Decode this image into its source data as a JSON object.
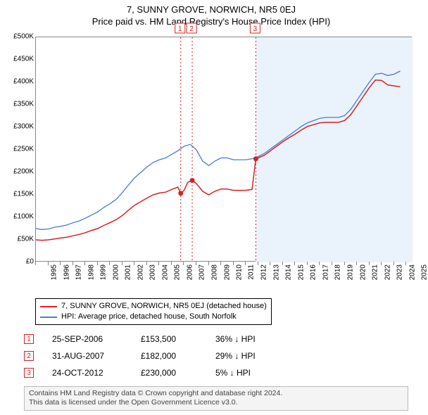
{
  "title_line1": "7, SUNNY GROVE, NORWICH, NR5 0EJ",
  "title_line2": "Price paid vs. HM Land Registry's House Price Index (HPI)",
  "chart": {
    "type": "line",
    "background_color": "#ffffff",
    "future_shade_color": "#eaf2fb",
    "border_color": "#888888",
    "yaxis": {
      "min": 0,
      "max": 500000,
      "step": 50000,
      "labels": [
        "£0",
        "£50K",
        "£100K",
        "£150K",
        "£200K",
        "£250K",
        "£300K",
        "£350K",
        "£400K",
        "£450K",
        "£500K"
      ],
      "label_color": "#000",
      "fontsize": 10
    },
    "xaxis": {
      "min": 1995,
      "max": 2025.5,
      "ticks_at": [
        1995,
        1996,
        1997,
        1998,
        1999,
        2000,
        2001,
        2002,
        2003,
        2004,
        2005,
        2006,
        2007,
        2008,
        2009,
        2010,
        2011,
        2012,
        2013,
        2014,
        2015,
        2016,
        2017,
        2018,
        2019,
        2020,
        2021,
        2022,
        2023,
        2024,
        2025
      ],
      "labels": [
        "1995",
        "1996",
        "1997",
        "1998",
        "1999",
        "2000",
        "2001",
        "2002",
        "2003",
        "2004",
        "2005",
        "2006",
        "2007",
        "2008",
        "2009",
        "2010",
        "2011",
        "2012",
        "2013",
        "2014",
        "2015",
        "2016",
        "2017",
        "2018",
        "2019",
        "2020",
        "2021",
        "2022",
        "2023",
        "2024",
        "2025"
      ],
      "label_color": "#000",
      "fontsize": 10
    },
    "series": [
      {
        "name": "hpi_south_norfolk_detached",
        "label": "HPI: Average price, detached house, South Norfolk",
        "color": "#4a7bd1",
        "line_width": 1.3,
        "data": [
          [
            1995.0,
            75000
          ],
          [
            1995.5,
            73000
          ],
          [
            1996.0,
            74000
          ],
          [
            1996.5,
            78000
          ],
          [
            1997.0,
            80000
          ],
          [
            1997.5,
            83000
          ],
          [
            1998.0,
            88000
          ],
          [
            1998.5,
            92000
          ],
          [
            1999.0,
            98000
          ],
          [
            1999.5,
            105000
          ],
          [
            2000.0,
            112000
          ],
          [
            2000.5,
            122000
          ],
          [
            2001.0,
            130000
          ],
          [
            2001.5,
            140000
          ],
          [
            2002.0,
            155000
          ],
          [
            2002.5,
            172000
          ],
          [
            2003.0,
            188000
          ],
          [
            2003.5,
            200000
          ],
          [
            2004.0,
            212000
          ],
          [
            2004.5,
            222000
          ],
          [
            2005.0,
            228000
          ],
          [
            2005.5,
            232000
          ],
          [
            2006.0,
            240000
          ],
          [
            2006.5,
            248000
          ],
          [
            2007.0,
            258000
          ],
          [
            2007.5,
            262000
          ],
          [
            2008.0,
            250000
          ],
          [
            2008.5,
            225000
          ],
          [
            2009.0,
            215000
          ],
          [
            2009.5,
            225000
          ],
          [
            2010.0,
            232000
          ],
          [
            2010.5,
            232000
          ],
          [
            2011.0,
            228000
          ],
          [
            2011.5,
            228000
          ],
          [
            2012.0,
            228000
          ],
          [
            2012.5,
            230000
          ],
          [
            2013.0,
            235000
          ],
          [
            2013.5,
            242000
          ],
          [
            2014.0,
            252000
          ],
          [
            2014.5,
            262000
          ],
          [
            2015.0,
            272000
          ],
          [
            2015.5,
            282000
          ],
          [
            2016.0,
            292000
          ],
          [
            2016.5,
            302000
          ],
          [
            2017.0,
            310000
          ],
          [
            2017.5,
            315000
          ],
          [
            2018.0,
            320000
          ],
          [
            2018.5,
            322000
          ],
          [
            2019.0,
            322000
          ],
          [
            2019.5,
            322000
          ],
          [
            2020.0,
            326000
          ],
          [
            2020.5,
            340000
          ],
          [
            2021.0,
            360000
          ],
          [
            2021.5,
            380000
          ],
          [
            2022.0,
            400000
          ],
          [
            2022.5,
            418000
          ],
          [
            2023.0,
            420000
          ],
          [
            2023.5,
            415000
          ],
          [
            2024.0,
            418000
          ],
          [
            2024.5,
            425000
          ]
        ]
      },
      {
        "name": "property_price_line",
        "label": "7, SUNNY GROVE, NORWICH, NR5 0EJ (detached house)",
        "color": "#d62222",
        "line_width": 1.5,
        "data": [
          [
            1995.0,
            50000
          ],
          [
            1995.5,
            49000
          ],
          [
            1996.0,
            50000
          ],
          [
            1996.5,
            52000
          ],
          [
            1997.0,
            54000
          ],
          [
            1997.5,
            56000
          ],
          [
            1998.0,
            59000
          ],
          [
            1998.5,
            62000
          ],
          [
            1999.0,
            66000
          ],
          [
            1999.5,
            71000
          ],
          [
            2000.0,
            75000
          ],
          [
            2000.5,
            82000
          ],
          [
            2001.0,
            88000
          ],
          [
            2001.5,
            95000
          ],
          [
            2002.0,
            104000
          ],
          [
            2002.5,
            116000
          ],
          [
            2003.0,
            127000
          ],
          [
            2003.5,
            135000
          ],
          [
            2004.0,
            143000
          ],
          [
            2004.5,
            150000
          ],
          [
            2005.0,
            154000
          ],
          [
            2005.5,
            156000
          ],
          [
            2006.0,
            162000
          ],
          [
            2006.5,
            167000
          ],
          [
            2006.73,
            153500
          ],
          [
            2007.0,
            160000
          ],
          [
            2007.3,
            178000
          ],
          [
            2007.66,
            182000
          ],
          [
            2008.0,
            175000
          ],
          [
            2008.5,
            158000
          ],
          [
            2009.0,
            150000
          ],
          [
            2009.5,
            158000
          ],
          [
            2010.0,
            163000
          ],
          [
            2010.5,
            163000
          ],
          [
            2011.0,
            160000
          ],
          [
            2011.5,
            160000
          ],
          [
            2012.0,
            160000
          ],
          [
            2012.5,
            162000
          ],
          [
            2012.81,
            230000
          ],
          [
            2013.0,
            232000
          ],
          [
            2013.5,
            238000
          ],
          [
            2014.0,
            248000
          ],
          [
            2014.5,
            258000
          ],
          [
            2015.0,
            268000
          ],
          [
            2015.5,
            277000
          ],
          [
            2016.0,
            285000
          ],
          [
            2016.5,
            294000
          ],
          [
            2017.0,
            302000
          ],
          [
            2017.5,
            306000
          ],
          [
            2018.0,
            310000
          ],
          [
            2018.5,
            311000
          ],
          [
            2019.0,
            311000
          ],
          [
            2019.5,
            311000
          ],
          [
            2020.0,
            315000
          ],
          [
            2020.5,
            328000
          ],
          [
            2021.0,
            348000
          ],
          [
            2021.5,
            368000
          ],
          [
            2022.0,
            388000
          ],
          [
            2022.5,
            405000
          ],
          [
            2023.0,
            404000
          ],
          [
            2023.5,
            394000
          ],
          [
            2024.0,
            392000
          ],
          [
            2024.5,
            390000
          ]
        ]
      }
    ],
    "sale_markers": [
      {
        "n": "1",
        "year": 2006.73,
        "price": 153500,
        "color": "#d62222"
      },
      {
        "n": "2",
        "year": 2007.66,
        "price": 182000,
        "color": "#d62222"
      },
      {
        "n": "3",
        "year": 2012.81,
        "price": 230000,
        "color": "#d62222"
      }
    ],
    "guide_line_color": "#d62222",
    "guide_line_dash": "2,3",
    "future_shade_start_marker": 3
  },
  "legend": {
    "items": [
      {
        "color": "#d62222",
        "label": "7, SUNNY GROVE, NORWICH, NR5 0EJ (detached house)"
      },
      {
        "color": "#4a7bd1",
        "label": "HPI: Average price, detached house, South Norfolk"
      }
    ]
  },
  "sales_symbol": "↓",
  "sales": [
    {
      "n": "1",
      "date": "25-SEP-2006",
      "price": "£153,500",
      "pct": "36% ↓ HPI",
      "border": "#d62222",
      "text": "#d62222"
    },
    {
      "n": "2",
      "date": "31-AUG-2007",
      "price": "£182,000",
      "pct": "29% ↓ HPI",
      "border": "#d62222",
      "text": "#d62222"
    },
    {
      "n": "3",
      "date": "24-OCT-2012",
      "price": "£230,000",
      "pct": "5% ↓ HPI",
      "border": "#d62222",
      "text": "#d62222"
    }
  ],
  "attribution": {
    "line1": "Contains HM Land Registry data © Crown copyright and database right 2024.",
    "line2": "This data is licensed under the Open Government Licence v3.0."
  }
}
